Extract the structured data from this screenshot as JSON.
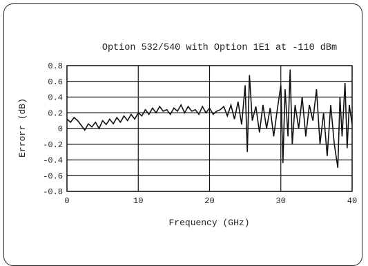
{
  "chart_data": {
    "type": "line",
    "title": "Option 532/540 with Option 1E1 at -110 dBm",
    "xlabel": "Frequency (GHz)",
    "ylabel": "Errorr (dB)",
    "xlim": [
      0,
      40
    ],
    "ylim": [
      -0.8,
      0.8
    ],
    "xticks": [
      "0",
      "10",
      "20",
      "30",
      "40"
    ],
    "yticks": [
      "0.8",
      "0.6",
      "0.4",
      "0.2",
      "0",
      "-0.2",
      "-0.4",
      "-0.6",
      "-0.8"
    ],
    "grid": true,
    "series": [
      {
        "x": [
          0,
          0.5,
          1,
          1.5,
          2,
          2.5,
          3,
          3.5,
          4,
          4.5,
          5,
          5.5,
          6,
          6.5,
          7,
          7.5,
          8,
          8.5,
          9,
          9.5,
          10,
          10.5,
          11,
          11.5,
          12,
          12.5,
          13,
          13.5,
          14,
          14.5,
          15,
          15.5,
          16,
          16.5,
          17,
          17.5,
          18,
          18.5,
          19,
          19.5,
          20,
          20.5,
          21,
          21.5,
          22,
          22.5,
          23,
          23.5,
          24,
          24.5,
          25,
          25.3,
          25.6,
          26,
          26.5,
          27,
          27.5,
          28,
          28.5,
          29,
          29.5,
          30,
          30.3,
          30.6,
          31,
          31.3,
          31.6,
          32,
          32.5,
          33,
          33.5,
          34,
          34.5,
          35,
          35.5,
          36,
          36.5,
          37,
          37.5,
          38,
          38.3,
          38.6,
          39,
          39.3,
          39.6,
          40
        ],
        "y": [
          0.12,
          0.08,
          0.14,
          0.1,
          0.04,
          -0.02,
          0.06,
          0.02,
          0.08,
          0.0,
          0.1,
          0.05,
          0.12,
          0.06,
          0.14,
          0.08,
          0.16,
          0.1,
          0.18,
          0.12,
          0.2,
          0.16,
          0.24,
          0.18,
          0.26,
          0.2,
          0.28,
          0.22,
          0.24,
          0.18,
          0.26,
          0.22,
          0.3,
          0.2,
          0.28,
          0.22,
          0.24,
          0.18,
          0.28,
          0.2,
          0.26,
          0.18,
          0.22,
          0.24,
          0.28,
          0.16,
          0.3,
          0.12,
          0.34,
          0.05,
          0.55,
          -0.3,
          0.68,
          0.1,
          0.28,
          -0.05,
          0.3,
          0.0,
          0.26,
          -0.1,
          0.24,
          0.55,
          -0.44,
          0.5,
          -0.1,
          0.75,
          -0.2,
          0.3,
          0.0,
          0.4,
          -0.1,
          0.3,
          0.1,
          0.5,
          -0.2,
          0.2,
          -0.35,
          0.3,
          -0.2,
          -0.5,
          0.4,
          -0.1,
          0.58,
          -0.25,
          0.3,
          0.05
        ]
      }
    ]
  }
}
